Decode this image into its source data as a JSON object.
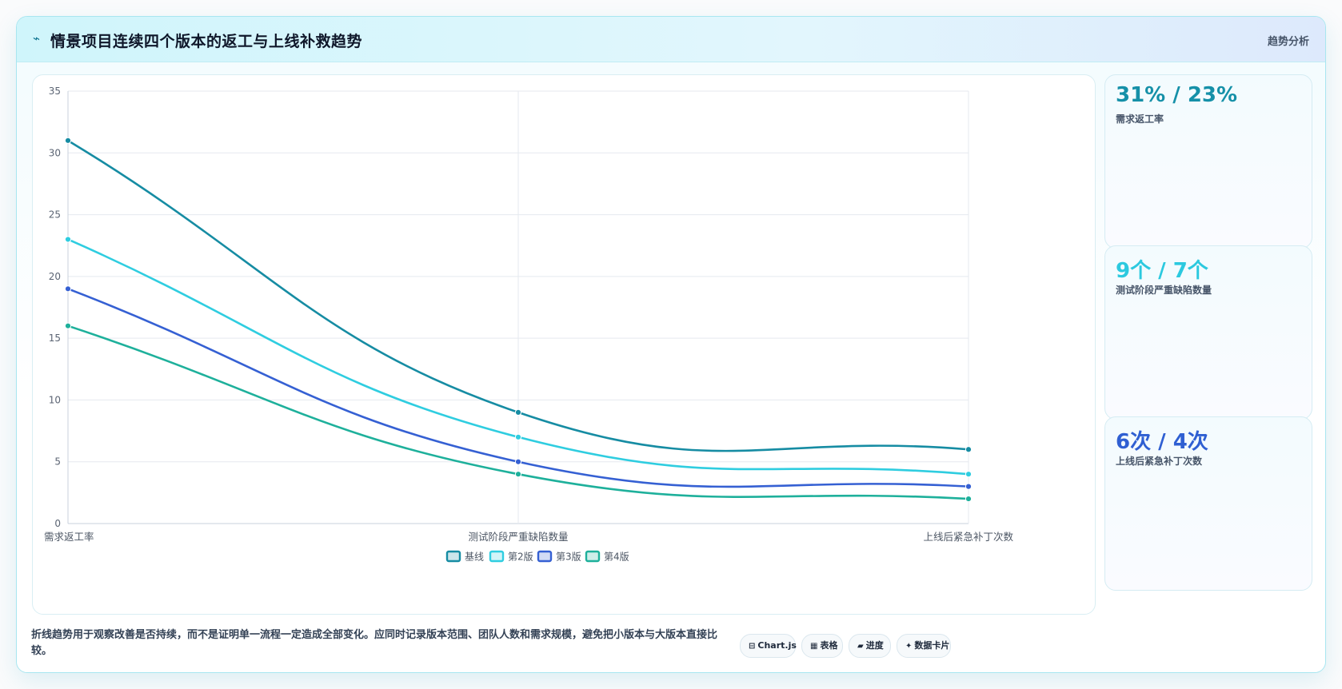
{
  "header": {
    "icon": "⌁",
    "title": "情景项目连续四个版本的返工与上线补救趋势",
    "tag": "趋势分析"
  },
  "chart_data": {
    "type": "line",
    "categories": [
      "需求返工率",
      "测试阶段严重缺陷数量",
      "上线后紧急补丁次数"
    ],
    "series": [
      {
        "name": "基线",
        "values": [
          31,
          9,
          6
        ],
        "color": "#168ca3"
      },
      {
        "name": "第2版",
        "values": [
          23,
          7,
          4
        ],
        "color": "#2fcde0"
      },
      {
        "name": "第3版",
        "values": [
          19,
          5,
          3
        ],
        "color": "#3560d3"
      },
      {
        "name": "第4版",
        "values": [
          16,
          4,
          2
        ],
        "color": "#1eb09b"
      }
    ],
    "y_ticks": [
      "0",
      "5",
      "10",
      "15",
      "20",
      "25",
      "30",
      "35"
    ],
    "ylim": [
      0,
      35
    ],
    "grid": true,
    "legend_position": "bottom"
  },
  "stats": [
    {
      "value": "31% / 23%",
      "label": "需求返工率",
      "color": "#1590a8"
    },
    {
      "value": "9个 / 7个",
      "label": "测试阶段严重缺陷数量",
      "color": "#2cc9df"
    },
    {
      "value": "6次 / 4次",
      "label": "上线后紧急补丁次数",
      "color": "#2f5fd2"
    }
  ],
  "footer": {
    "note": "折线趋势用于观察改善是否持续，而不是证明单一流程一定造成全部变化。应同时记录版本范围、团队人数和需求规模，避免把小版本与大版本直接比较。",
    "pills": [
      {
        "icon": "⊟",
        "label": "Chart.js"
      },
      {
        "icon": "▦",
        "label": "表格"
      },
      {
        "icon": "▰",
        "label": "进度"
      },
      {
        "icon": "✦",
        "label": "数据卡片"
      }
    ]
  }
}
